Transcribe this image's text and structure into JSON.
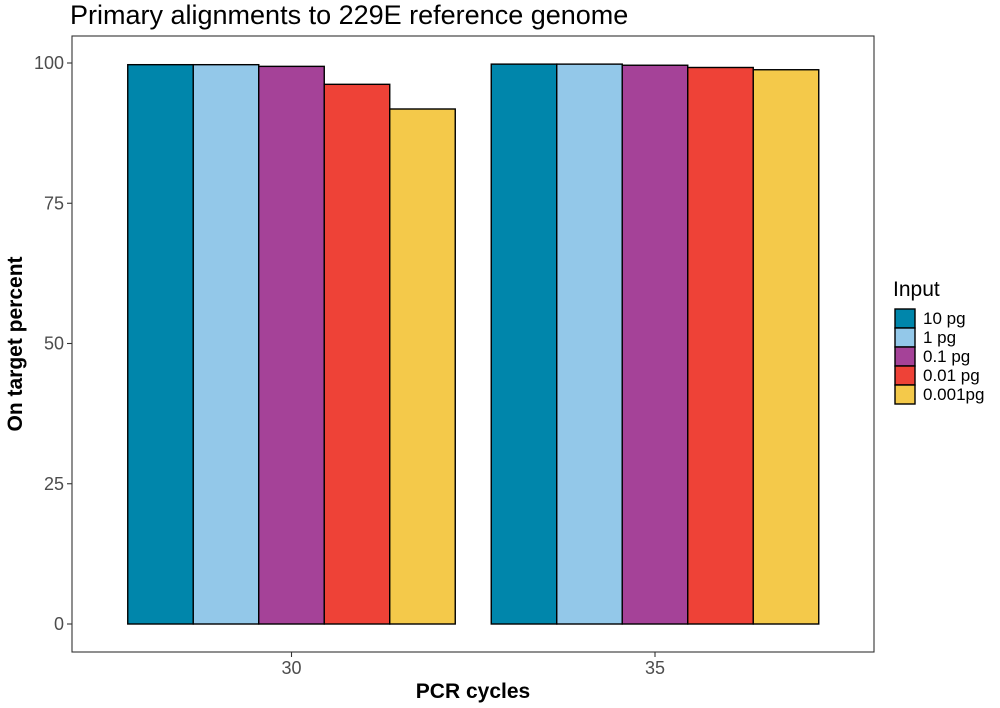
{
  "chart_data": {
    "type": "bar",
    "title": "Primary alignments to 229E reference genome",
    "xlabel": "PCR cycles",
    "ylabel": "On target percent",
    "categories": [
      "30",
      "35"
    ],
    "ylim": [
      0,
      100
    ],
    "yticks": [
      "0",
      "25",
      "50",
      "75",
      "100"
    ],
    "grid": false,
    "legend_title": "Input",
    "legend_position": "right",
    "series": [
      {
        "name": "10 pg",
        "color": "#0086AB",
        "values": [
          99.7,
          99.8
        ]
      },
      {
        "name": "1 pg",
        "color": "#93C8E9",
        "values": [
          99.7,
          99.8
        ]
      },
      {
        "name": "0.1 pg",
        "color": "#A54298",
        "values": [
          99.4,
          99.6
        ]
      },
      {
        "name": "0.01 pg",
        "color": "#EE4237",
        "values": [
          96.2,
          99.2
        ]
      },
      {
        "name": "0.001pg",
        "color": "#F4C94A",
        "values": [
          91.8,
          98.8
        ]
      }
    ]
  }
}
